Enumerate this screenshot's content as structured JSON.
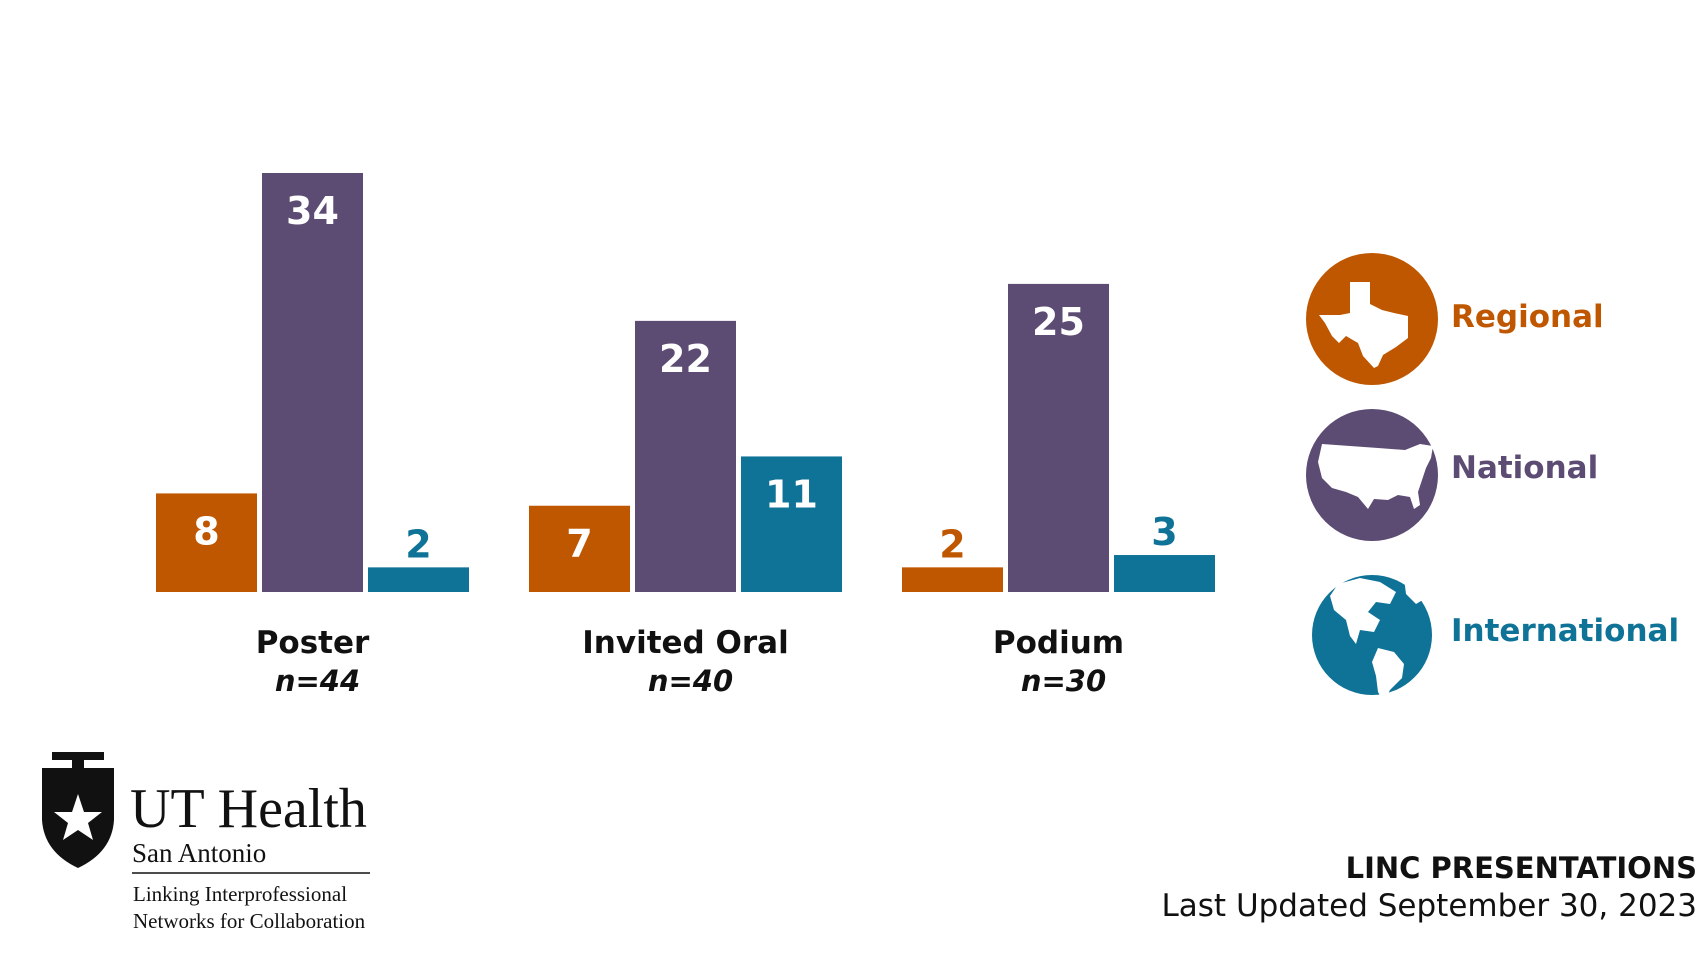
{
  "chart_data": {
    "type": "bar",
    "categories": [
      "Poster",
      "Invited Oral",
      "Podium"
    ],
    "category_totals": [
      "n=44",
      "n=40",
      "n=30"
    ],
    "series": [
      {
        "name": "Regional",
        "color": "#BF5700",
        "values": [
          8,
          7,
          2
        ]
      },
      {
        "name": "National",
        "color": "#5C4B73",
        "values": [
          34,
          22,
          25
        ]
      },
      {
        "name": "International",
        "color": "#0F7397",
        "values": [
          2,
          11,
          3
        ]
      }
    ],
    "ylim": [
      0,
      34
    ],
    "legend_position": "right",
    "grid": false
  },
  "legend": {
    "items": [
      {
        "label": "Regional",
        "icon": "texas-map-icon",
        "color": "#BF5700"
      },
      {
        "label": "National",
        "icon": "usa-map-icon",
        "color": "#5C4B73"
      },
      {
        "label": "International",
        "icon": "globe-icon",
        "color": "#0F7397"
      }
    ]
  },
  "logo": {
    "name": "UT Health",
    "subtitle": "San Antonio",
    "tagline_line1": "Linking Interprofessional",
    "tagline_line2": "Networks for Collaboration"
  },
  "footer": {
    "title": "LINC PRESENTATIONS",
    "date": "Last Updated September 30, 2023"
  }
}
